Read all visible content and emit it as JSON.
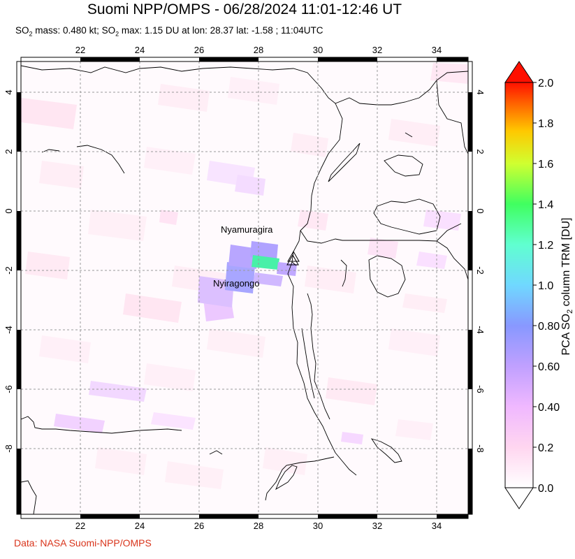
{
  "title": "Suomi NPP/OMPS - 06/28/2024 11:01-12:46 UT",
  "subtitle": {
    "mass_prefix": "SO",
    "mass_sub": "2",
    "mass_text": " mass: 0.480 kt; SO",
    "max_sub": "2",
    "max_text": " max: 1.15 DU at lon: 28.37 lat: -1.58 ; 11:04UTC"
  },
  "credit": "Data: NASA Suomi-NPP/OMPS",
  "map": {
    "lon_ticks": [
      "22",
      "24",
      "26",
      "28",
      "30",
      "32",
      "34"
    ],
    "lat_ticks": [
      "4",
      "2",
      "0",
      "-2",
      "-4",
      "-6",
      "-8"
    ],
    "volcanoes": [
      {
        "name": "Nyamuragira"
      },
      {
        "name": "Nyiragongo"
      }
    ]
  },
  "colorbar": {
    "label": "PCA SO2 column TRM [DU]",
    "label_prefix": "PCA SO",
    "label_sub": "2",
    "label_suffix": " column TRM [DU]",
    "ticks": [
      "2.0",
      "1.8",
      "1.6",
      "1.4",
      "1.2",
      "1.0",
      "0.80",
      "0.60",
      "0.40",
      "0.2",
      "0.0"
    ],
    "colors": [
      "#ffffff",
      "#ffd0f0",
      "#e0b0ff",
      "#a090ff",
      "#6fa8ff",
      "#70ffff",
      "#40ff80",
      "#b0ff40",
      "#ffff00",
      "#ff9000",
      "#ff0000",
      "#c80000"
    ]
  }
}
